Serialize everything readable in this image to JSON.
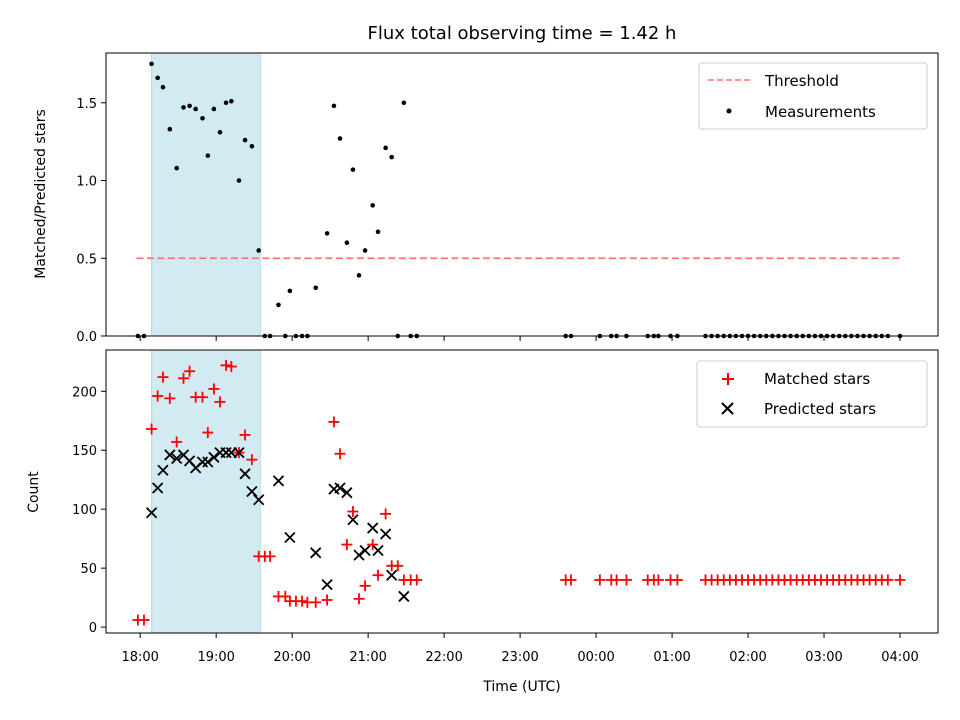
{
  "title": "Flux total observing time = 1.42 h",
  "shaded_interval": {
    "start_h": 18.15,
    "end_h": 19.58
  },
  "colors": {
    "shade": "#add8e6",
    "threshold": "#ff7373",
    "matched": "#ff0000",
    "predicted": "#000000",
    "measurement": "#000000"
  },
  "chart_data": [
    {
      "type": "scatter",
      "panel": "top",
      "ylabel": "Matched/Predicted stars",
      "xlim": [
        17.55,
        28.5
      ],
      "ylim": [
        0,
        1.82
      ],
      "yticks": [
        "0.0",
        "0.5",
        "1.0",
        "1.5"
      ],
      "ytick_values": [
        0,
        0.5,
        1.0,
        1.5
      ],
      "legend": [
        "Threshold",
        "Measurements"
      ],
      "legend_position": "upper right",
      "threshold": {
        "name": "Threshold",
        "value": 0.5,
        "x": [
          17.95,
          28.0
        ]
      },
      "series": [
        {
          "name": "Measurements",
          "x": [
            17.97,
            18.05,
            18.15,
            18.23,
            18.3,
            18.39,
            18.48,
            18.57,
            18.65,
            18.73,
            18.82,
            18.89,
            18.97,
            19.05,
            19.13,
            19.2,
            19.3,
            19.38,
            19.47,
            19.56,
            19.64,
            19.71,
            19.82,
            19.91,
            19.97,
            20.05,
            20.13,
            20.2,
            20.31,
            20.46,
            20.55,
            20.63,
            20.72,
            20.8,
            20.88,
            20.96,
            21.06,
            21.13,
            21.23,
            21.31,
            21.39,
            21.47,
            21.56,
            21.64,
            23.6,
            23.67,
            24.05,
            24.2,
            24.27,
            24.4,
            24.68,
            24.76,
            24.82,
            24.98,
            25.07,
            25.44,
            25.52,
            25.6,
            25.68,
            25.76,
            25.84,
            25.92,
            26.0,
            26.08,
            26.16,
            26.24,
            26.32,
            26.4,
            26.48,
            26.56,
            26.64,
            26.72,
            26.8,
            26.88,
            26.96,
            27.04,
            27.12,
            27.2,
            27.28,
            27.36,
            27.44,
            27.52,
            27.6,
            27.68,
            27.76,
            27.84,
            28.0
          ],
          "y": [
            0.0,
            0.0,
            1.75,
            1.66,
            1.6,
            1.33,
            1.08,
            1.47,
            1.48,
            1.46,
            1.4,
            1.16,
            1.46,
            1.31,
            1.5,
            1.51,
            1.0,
            1.26,
            1.22,
            0.55,
            0.0,
            0.0,
            0.2,
            0.0,
            0.29,
            0.0,
            0.0,
            0.0,
            0.31,
            0.66,
            1.48,
            1.27,
            0.6,
            1.07,
            0.39,
            0.55,
            0.84,
            0.67,
            1.21,
            1.15,
            0.0,
            1.5,
            0.0,
            0.0,
            0.0,
            0.0,
            0.0,
            0.0,
            0.0,
            0.0,
            0.0,
            0.0,
            0.0,
            0.0,
            0.0,
            0.0,
            0.0,
            0.0,
            0.0,
            0.0,
            0.0,
            0.0,
            0.0,
            0.0,
            0.0,
            0.0,
            0.0,
            0.0,
            0.0,
            0.0,
            0.0,
            0.0,
            0.0,
            0.0,
            0.0,
            0.0,
            0.0,
            0.0,
            0.0,
            0.0,
            0.0,
            0.0,
            0.0,
            0.0,
            0.0,
            0.0,
            0.0
          ]
        }
      ]
    },
    {
      "type": "scatter",
      "panel": "bottom",
      "xlabel": "Time (UTC)",
      "ylabel": "Count",
      "xlim": [
        17.55,
        28.5
      ],
      "ylim": [
        -5,
        235
      ],
      "xticks": [
        "18:00",
        "19:00",
        "20:00",
        "21:00",
        "22:00",
        "23:00",
        "00:00",
        "01:00",
        "02:00",
        "03:00",
        "04:00"
      ],
      "xtick_values": [
        18,
        19,
        20,
        21,
        22,
        23,
        24,
        25,
        26,
        27,
        28
      ],
      "yticks": [
        "0",
        "50",
        "100",
        "150",
        "200"
      ],
      "ytick_values": [
        0,
        50,
        100,
        150,
        200
      ],
      "legend": [
        "Matched stars",
        "Predicted stars"
      ],
      "legend_position": "upper right",
      "series": [
        {
          "name": "Matched stars",
          "marker": "+",
          "x": [
            17.97,
            18.05,
            18.15,
            18.23,
            18.3,
            18.39,
            18.48,
            18.57,
            18.65,
            18.73,
            18.82,
            18.89,
            18.97,
            19.05,
            19.13,
            19.2,
            19.3,
            19.38,
            19.47,
            19.56,
            19.64,
            19.71,
            19.82,
            19.91,
            19.97,
            20.05,
            20.13,
            20.2,
            20.31,
            20.46,
            20.55,
            20.63,
            20.72,
            20.8,
            20.88,
            20.96,
            21.06,
            21.13,
            21.23,
            21.31,
            21.39,
            21.47,
            21.56,
            21.64,
            23.6,
            23.67,
            24.05,
            24.2,
            24.27,
            24.4,
            24.68,
            24.76,
            24.82,
            24.98,
            25.07,
            25.44,
            25.52,
            25.6,
            25.68,
            25.76,
            25.84,
            25.92,
            26.0,
            26.08,
            26.16,
            26.24,
            26.32,
            26.4,
            26.48,
            26.56,
            26.64,
            26.72,
            26.8,
            26.88,
            26.96,
            27.04,
            27.12,
            27.2,
            27.28,
            27.36,
            27.44,
            27.52,
            27.6,
            27.68,
            27.76,
            27.84,
            28.0
          ],
          "y": [
            6,
            6,
            168,
            196,
            212,
            194,
            157,
            211,
            217,
            195,
            195,
            165,
            202,
            191,
            222,
            221,
            148,
            163,
            142,
            60,
            60,
            60,
            26,
            26,
            22,
            22,
            22,
            21,
            21,
            23,
            174,
            147,
            70,
            98,
            24,
            35,
            70,
            44,
            96,
            52,
            52,
            40,
            40,
            40,
            40,
            40,
            40,
            40,
            40,
            40,
            40,
            40,
            40,
            40,
            40,
            40,
            40,
            40,
            40,
            40,
            40,
            40,
            40,
            40,
            40,
            40,
            40,
            40,
            40,
            40,
            40,
            40,
            40,
            40,
            40,
            40,
            40,
            40,
            40,
            40,
            40,
            40,
            40,
            40,
            40,
            40,
            40
          ]
        },
        {
          "name": "Predicted stars",
          "marker": "x",
          "x": [
            18.15,
            18.23,
            18.3,
            18.39,
            18.48,
            18.57,
            18.65,
            18.73,
            18.82,
            18.89,
            18.97,
            19.05,
            19.13,
            19.2,
            19.3,
            19.38,
            19.47,
            19.56,
            19.82,
            19.97,
            20.31,
            20.46,
            20.55,
            20.63,
            20.72,
            20.8,
            20.88,
            20.96,
            21.06,
            21.13,
            21.23,
            21.31,
            21.47
          ],
          "y": [
            97,
            118,
            133,
            146,
            143,
            146,
            141,
            135,
            140,
            140,
            144,
            148,
            148,
            148,
            148,
            130,
            115,
            108,
            124,
            76,
            63,
            36,
            117,
            118,
            114,
            91,
            61,
            65,
            84,
            65,
            79,
            44,
            26
          ]
        }
      ]
    }
  ]
}
